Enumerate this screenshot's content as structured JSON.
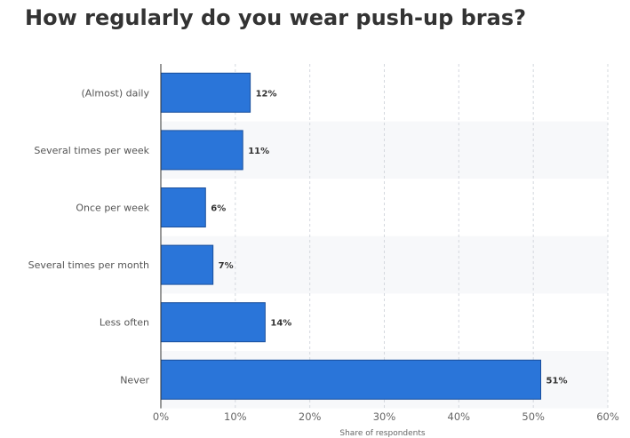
{
  "chart_data": {
    "type": "bar",
    "orientation": "horizontal",
    "title": "How regularly do you wear push-up bras?",
    "xlabel": "Share of respondents",
    "ylabel": "",
    "categories": [
      "(Almost) daily",
      "Several times per week",
      "Once per week",
      "Several times per month",
      "Less often",
      "Never"
    ],
    "values": [
      12,
      11,
      6,
      7,
      14,
      51
    ],
    "value_labels": [
      "12%",
      "11%",
      "6%",
      "7%",
      "14%",
      "51%"
    ],
    "xlim": [
      0,
      60
    ],
    "x_ticks": [
      0,
      10,
      20,
      30,
      40,
      50,
      60
    ],
    "x_tick_labels": [
      "0%",
      "10%",
      "20%",
      "30%",
      "40%",
      "50%",
      "60%"
    ],
    "grid": true,
    "bar_color": "#2a75d9",
    "bar_border_color": "#1a4f9c"
  }
}
